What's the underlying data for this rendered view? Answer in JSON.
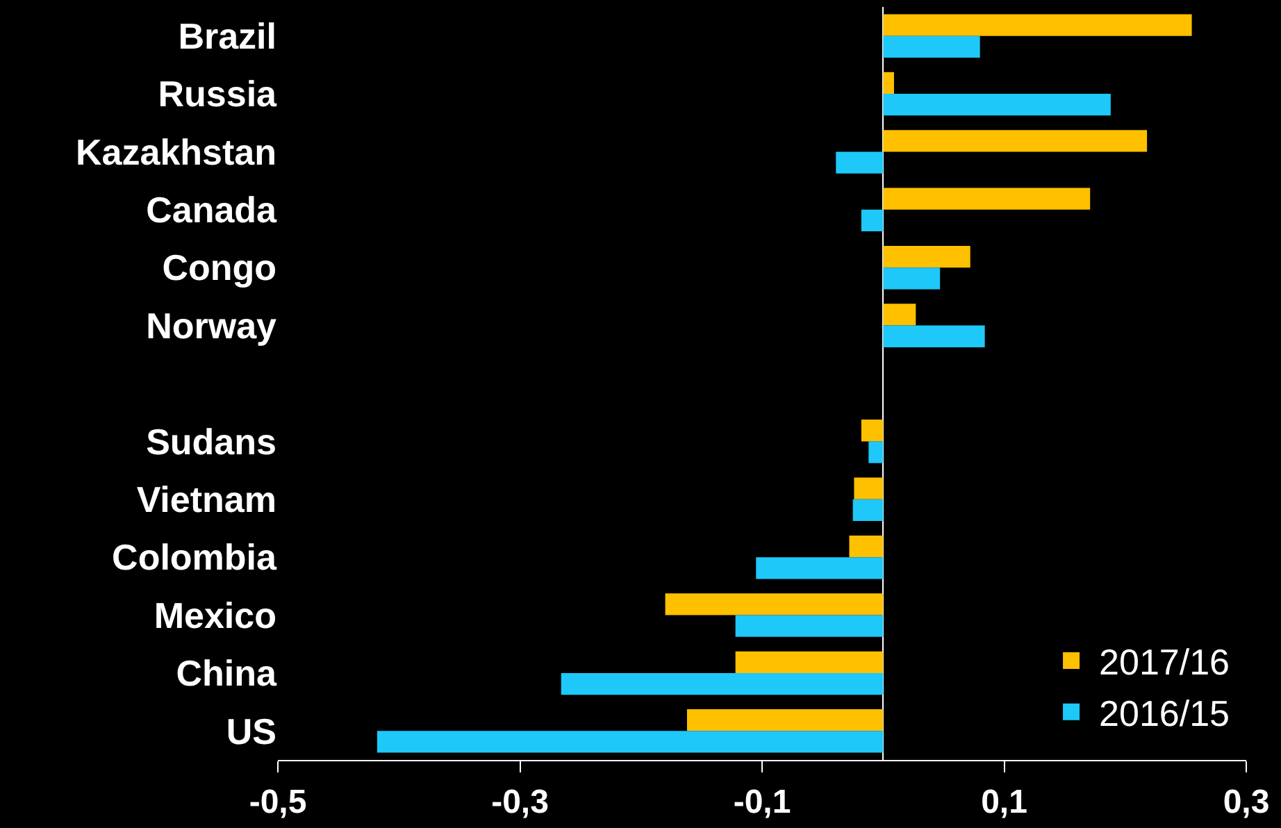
{
  "chart_data": {
    "type": "bar",
    "orientation": "horizontal",
    "categories": [
      "Brazil",
      "Russia",
      "Kazakhstan",
      "Canada",
      "Congo",
      "Norway",
      null,
      "Sudans",
      "Vietnam",
      "Colombia",
      "Mexico",
      "China",
      "US"
    ],
    "series": [
      {
        "name": "2017/16",
        "color": "#ffc000",
        "values": [
          0.255,
          0.009,
          0.218,
          0.171,
          0.072,
          0.027,
          null,
          -0.018,
          -0.024,
          -0.028,
          -0.18,
          -0.122,
          -0.162
        ]
      },
      {
        "name": "2016/15",
        "color": "#1ec8f8",
        "values": [
          0.08,
          0.188,
          -0.039,
          -0.018,
          0.047,
          0.084,
          null,
          -0.012,
          -0.025,
          -0.105,
          -0.122,
          -0.266,
          -0.418
        ]
      }
    ],
    "xlim": [
      -0.5,
      0.3
    ],
    "xticks": [
      {
        "value": -0.5,
        "label": "-0,5"
      },
      {
        "value": -0.3,
        "label": "-0,3"
      },
      {
        "value": -0.1,
        "label": "-0,1"
      },
      {
        "value": 0.1,
        "label": "0,1"
      },
      {
        "value": 0.3,
        "label": "0,3"
      }
    ],
    "grid": false,
    "legend": "bottom right"
  }
}
